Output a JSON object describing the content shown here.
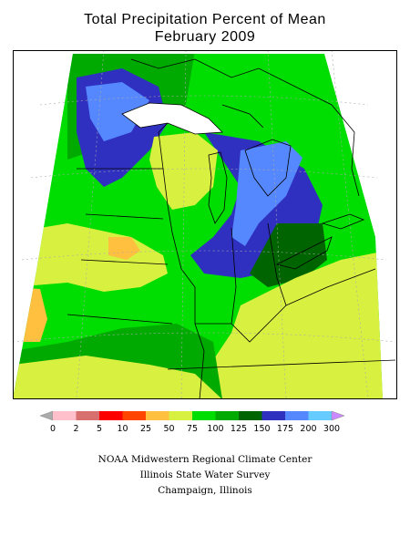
{
  "title": "Total Precipitation Percent of Mean",
  "subtitle": "February 2009",
  "legend": {
    "ticks": [
      "0",
      "2",
      "5",
      "10",
      "25",
      "50",
      "75",
      "100",
      "125",
      "150",
      "175",
      "200",
      "300"
    ],
    "colors": [
      "#aaaaaa",
      "#ffc0cb",
      "#d87070",
      "#ff0000",
      "#ff4500",
      "#ffc040",
      "#d8f040",
      "#00dd00",
      "#00aa00",
      "#006400",
      "#3030c0",
      "#5588ff",
      "#66ccff",
      "#cc88ff"
    ]
  },
  "credits": [
    "NOAA Midwestern Regional Climate Center",
    "Illinois State Water Survey",
    "Champaign, Illinois"
  ],
  "map_colors": {
    "bright_green": "#00dd00",
    "green": "#00aa00",
    "dark_green": "#006400",
    "yellow_green": "#d8f040",
    "orange": "#ffc040",
    "dark_blue": "#3030c0",
    "blue": "#5588ff",
    "light_blue": "#66ccff"
  }
}
